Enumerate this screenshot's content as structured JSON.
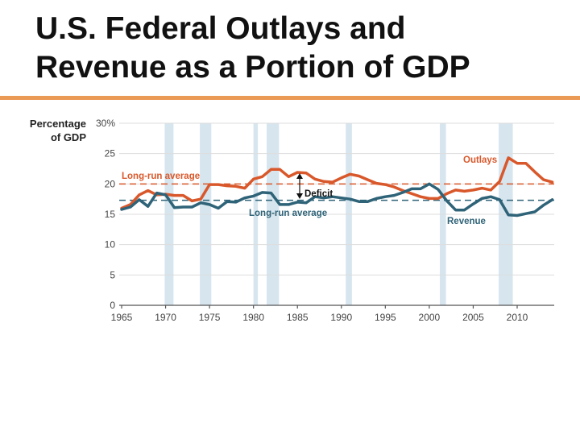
{
  "slide": {
    "title_line1": "U.S. Federal Outlays and",
    "title_line2": "Revenue as a Portion of GDP",
    "accent_color": "#ea9a55"
  },
  "chart_data": {
    "type": "line",
    "ylabel_line1": "Percentage",
    "ylabel_line2": "of GDP",
    "ylim": [
      0,
      30
    ],
    "xlim": [
      1965,
      2014
    ],
    "grid": true,
    "y_ticks": [
      "0",
      "5",
      "10",
      "15",
      "20",
      "25",
      "30%"
    ],
    "y_tick_values": [
      0,
      5,
      10,
      15,
      20,
      25,
      30
    ],
    "x_ticks": [
      1965,
      1970,
      1975,
      1980,
      1985,
      1990,
      1995,
      2000,
      2005,
      2010
    ],
    "x": [
      1965,
      1966,
      1967,
      1968,
      1969,
      1970,
      1971,
      1972,
      1973,
      1974,
      1975,
      1976,
      1977,
      1978,
      1979,
      1980,
      1981,
      1982,
      1983,
      1984,
      1985,
      1986,
      1987,
      1988,
      1989,
      1990,
      1991,
      1992,
      1993,
      1994,
      1995,
      1996,
      1997,
      1998,
      1999,
      2000,
      2001,
      2002,
      2003,
      2004,
      2005,
      2006,
      2007,
      2008,
      2009,
      2010,
      2011,
      2012,
      2013,
      2014
    ],
    "series": [
      {
        "name": "Outlays",
        "color": "#d9582b",
        "values": [
          16.0,
          16.6,
          18.2,
          18.9,
          18.2,
          18.3,
          18.1,
          18.1,
          17.2,
          17.5,
          19.9,
          19.9,
          19.7,
          19.6,
          19.3,
          20.8,
          21.2,
          22.4,
          22.4,
          21.2,
          21.9,
          21.8,
          20.8,
          20.4,
          20.3,
          21.0,
          21.6,
          21.3,
          20.7,
          20.1,
          19.9,
          19.5,
          18.9,
          18.4,
          17.9,
          17.6,
          17.6,
          18.4,
          19.0,
          18.8,
          19.0,
          19.3,
          19.0,
          20.4,
          24.3,
          23.4,
          23.4,
          22.0,
          20.7,
          20.3
        ]
      },
      {
        "name": "Revenue",
        "color": "#2f6378",
        "values": [
          15.8,
          16.2,
          17.4,
          16.3,
          18.5,
          18.2,
          16.1,
          16.2,
          16.2,
          16.9,
          16.6,
          16.0,
          17.1,
          17.0,
          17.7,
          18.0,
          18.6,
          18.5,
          16.6,
          16.6,
          17.0,
          16.9,
          17.9,
          17.7,
          17.9,
          17.7,
          17.5,
          17.1,
          17.1,
          17.6,
          17.9,
          18.1,
          18.6,
          19.2,
          19.2,
          20.0,
          19.1,
          17.2,
          15.7,
          15.7,
          16.7,
          17.6,
          17.9,
          17.4,
          14.9,
          14.8,
          15.1,
          15.4,
          16.5,
          17.4
        ]
      }
    ],
    "long_run_averages": [
      {
        "label": "Long-run average",
        "series": "Outlays",
        "value": 20.0,
        "color": "#d9582b"
      },
      {
        "label": "Long-run average",
        "series": "Revenue",
        "value": 17.3,
        "color": "#2f6378"
      }
    ],
    "annotations": {
      "deficit": "Deficit"
    },
    "recessions": [
      [
        1969.9,
        1970.9
      ],
      [
        1973.9,
        1975.2
      ],
      [
        1980.0,
        1980.5
      ],
      [
        1981.5,
        1982.9
      ],
      [
        1990.5,
        1991.2
      ],
      [
        2001.2,
        2001.9
      ],
      [
        2007.9,
        2009.5
      ]
    ],
    "recession_color": "#d6e5ee"
  }
}
